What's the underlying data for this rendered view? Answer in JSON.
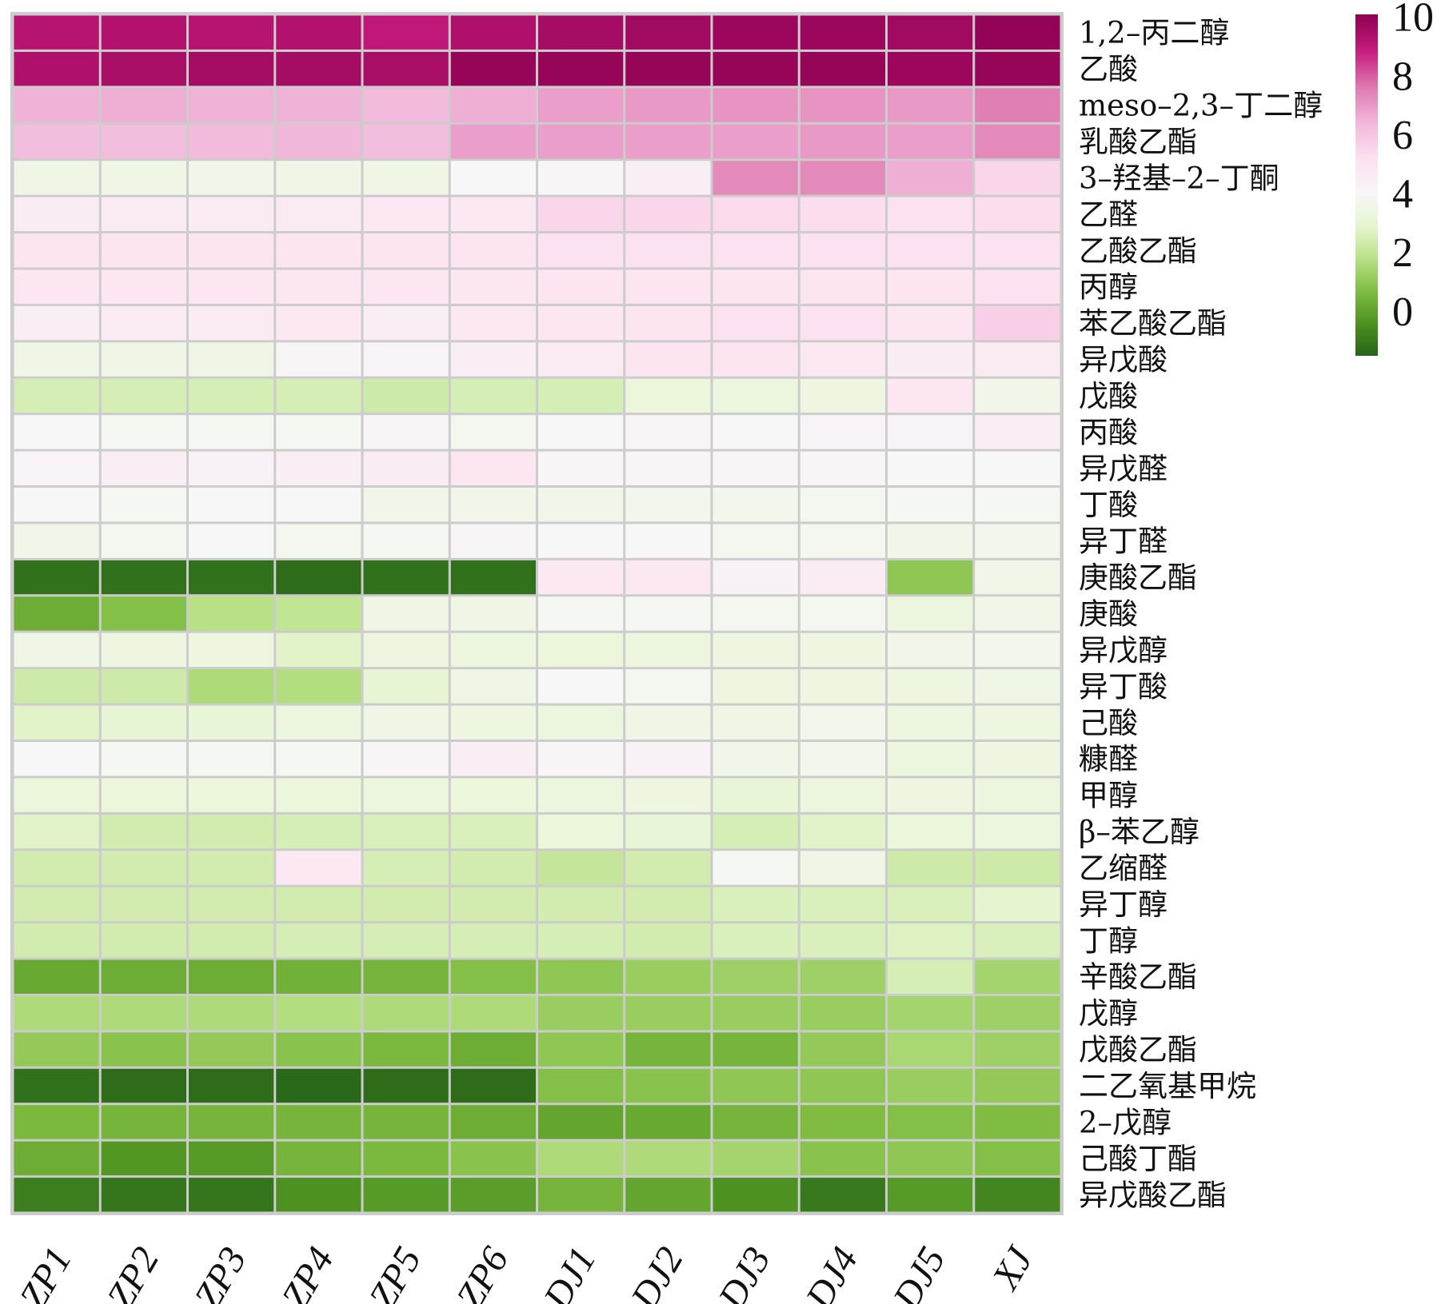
{
  "chart_data": {
    "type": "heatmap",
    "title": "",
    "colormap": "PiYG",
    "color_range": [
      -1.5,
      10.1
    ],
    "colorbar_ticks": [
      "0",
      "2",
      "4",
      "6",
      "8",
      "10"
    ],
    "colorbar_tick_values": [
      0,
      2,
      4,
      6,
      8,
      10
    ],
    "columns": [
      "ZP1",
      "ZP2",
      "ZP3",
      "ZP4",
      "ZP5",
      "ZP6",
      "DJ1",
      "DJ2",
      "DJ3",
      "DJ4",
      "DJ5",
      "XJ"
    ],
    "rows": [
      "1,2–丙二醇",
      "乙酸",
      "meso–2,3–丁二醇",
      "乳酸乙酯",
      "3–羟基–2–丁酮",
      "乙醛",
      "乙酸乙酯",
      "丙醇",
      "苯乙酸乙酯",
      "异戊酸",
      "戊酸",
      "丙酸",
      "异戊醛",
      "丁酸",
      "异丁醛",
      "庚酸乙酯",
      "庚酸",
      "异戊醇",
      "异丁酸",
      "己酸",
      "糠醛",
      "甲醇",
      "β–苯乙醇",
      "乙缩醛",
      "异丁醇",
      "丁醇",
      "辛酸乙酯",
      "戊醇",
      "戊酸乙酯",
      "二乙氧基甲烷",
      "2–戊醇",
      "己酸丁酯",
      "异戊酸乙酯"
    ],
    "values": [
      [
        9.2,
        9.3,
        9.2,
        9.3,
        9.0,
        9.4,
        9.6,
        9.7,
        9.8,
        9.8,
        9.7,
        10.0
      ],
      [
        9.4,
        9.5,
        9.6,
        9.6,
        9.5,
        9.9,
        9.9,
        9.9,
        9.9,
        9.9,
        9.8,
        9.9
      ],
      [
        6.5,
        6.6,
        6.5,
        6.5,
        6.3,
        6.6,
        6.9,
        7.0,
        7.1,
        7.1,
        7.0,
        7.5
      ],
      [
        6.2,
        6.2,
        6.3,
        6.4,
        6.2,
        6.9,
        6.9,
        6.9,
        6.9,
        7.0,
        6.9,
        7.3
      ],
      [
        3.5,
        3.5,
        3.6,
        3.5,
        3.5,
        4.0,
        4.1,
        4.5,
        7.3,
        7.3,
        6.6,
        5.5
      ],
      [
        4.6,
        4.7,
        4.7,
        4.7,
        4.8,
        4.8,
        5.5,
        5.5,
        5.4,
        5.3,
        5.1,
        5.3
      ],
      [
        5.0,
        5.0,
        5.0,
        5.0,
        5.0,
        5.0,
        5.1,
        5.1,
        5.1,
        5.1,
        5.1,
        5.1
      ],
      [
        4.9,
        4.9,
        4.9,
        4.9,
        4.9,
        4.9,
        5.0,
        5.0,
        5.0,
        5.0,
        5.0,
        5.1
      ],
      [
        4.5,
        4.7,
        4.7,
        4.8,
        4.5,
        4.8,
        4.9,
        5.0,
        5.1,
        5.1,
        4.9,
        5.7
      ],
      [
        3.5,
        3.5,
        3.5,
        4.1,
        4.2,
        4.5,
        4.7,
        5.0,
        5.0,
        4.8,
        4.6,
        4.7
      ],
      [
        2.5,
        2.5,
        2.5,
        2.5,
        2.3,
        2.5,
        2.5,
        3.2,
        3.3,
        3.4,
        4.9,
        3.6
      ],
      [
        4.0,
        3.9,
        3.9,
        3.9,
        4.1,
        3.8,
        4.0,
        4.1,
        4.0,
        4.2,
        4.2,
        4.5
      ],
      [
        4.2,
        4.5,
        4.3,
        4.5,
        4.6,
        4.9,
        4.1,
        4.1,
        4.1,
        4.1,
        4.0,
        4.0
      ],
      [
        4.0,
        3.9,
        4.0,
        4.0,
        3.6,
        3.6,
        3.6,
        3.7,
        3.7,
        3.8,
        3.9,
        3.9
      ],
      [
        3.6,
        3.8,
        4.0,
        3.8,
        3.9,
        4.1,
        4.0,
        4.0,
        3.8,
        3.8,
        3.6,
        3.7
      ],
      [
        -1.2,
        -1.2,
        -1.2,
        -1.3,
        -1.2,
        -1.2,
        4.8,
        4.8,
        4.3,
        4.6,
        1.0,
        3.6
      ],
      [
        0.3,
        0.8,
        1.8,
        2.0,
        3.5,
        3.5,
        3.9,
        3.9,
        3.8,
        3.8,
        3.3,
        3.6
      ],
      [
        3.5,
        3.4,
        3.4,
        2.8,
        3.4,
        3.3,
        3.2,
        3.3,
        3.4,
        3.4,
        3.6,
        3.7
      ],
      [
        2.3,
        2.3,
        1.6,
        1.7,
        3.0,
        3.5,
        4.0,
        3.8,
        3.4,
        3.4,
        3.4,
        3.5
      ],
      [
        2.8,
        3.0,
        3.1,
        3.3,
        3.5,
        3.4,
        3.3,
        3.5,
        3.5,
        3.7,
        3.3,
        3.4
      ],
      [
        4.0,
        3.9,
        3.9,
        3.9,
        4.1,
        4.5,
        4.1,
        4.3,
        3.6,
        3.7,
        3.3,
        3.4
      ],
      [
        3.2,
        3.2,
        3.2,
        3.2,
        3.3,
        3.2,
        3.3,
        3.4,
        3.1,
        3.3,
        3.4,
        3.3
      ],
      [
        2.8,
        2.4,
        2.4,
        2.5,
        2.6,
        2.6,
        3.2,
        3.1,
        2.5,
        2.8,
        3.2,
        3.3
      ],
      [
        2.4,
        2.4,
        2.4,
        4.8,
        2.5,
        2.4,
        2.1,
        2.4,
        3.9,
        3.5,
        2.3,
        2.3
      ],
      [
        2.4,
        2.4,
        2.4,
        2.4,
        2.4,
        2.4,
        2.4,
        2.4,
        2.6,
        2.6,
        2.6,
        2.9
      ],
      [
        2.4,
        2.4,
        2.4,
        2.5,
        2.5,
        2.5,
        2.5,
        2.4,
        2.6,
        2.6,
        2.7,
        2.6
      ],
      [
        0.2,
        0.3,
        0.3,
        0.4,
        0.5,
        0.8,
        1.0,
        1.2,
        1.3,
        1.3,
        2.5,
        1.4
      ],
      [
        1.6,
        1.6,
        1.6,
        1.7,
        1.6,
        1.6,
        1.2,
        1.2,
        1.2,
        1.2,
        1.4,
        1.3
      ],
      [
        1.1,
        0.9,
        1.1,
        0.9,
        0.6,
        0.3,
        1.0,
        0.5,
        0.5,
        1.1,
        1.5,
        1.3
      ],
      [
        -1.2,
        -1.3,
        -1.3,
        -1.4,
        -1.3,
        -1.3,
        0.8,
        0.9,
        1.0,
        1.0,
        1.2,
        1.1
      ],
      [
        0.6,
        0.5,
        0.5,
        0.5,
        0.5,
        0.3,
        0.1,
        0.2,
        0.5,
        0.7,
        0.8,
        0.7
      ],
      [
        0.3,
        -0.3,
        -0.2,
        0.5,
        0.6,
        0.9,
        1.6,
        1.6,
        1.4,
        0.9,
        1.0,
        0.8
      ],
      [
        -0.9,
        -1.1,
        -1.1,
        -0.4,
        -0.2,
        -0.1,
        0.5,
        0.1,
        -0.4,
        -1.0,
        -0.2,
        -0.7
      ]
    ],
    "legend": "colorbar right"
  }
}
